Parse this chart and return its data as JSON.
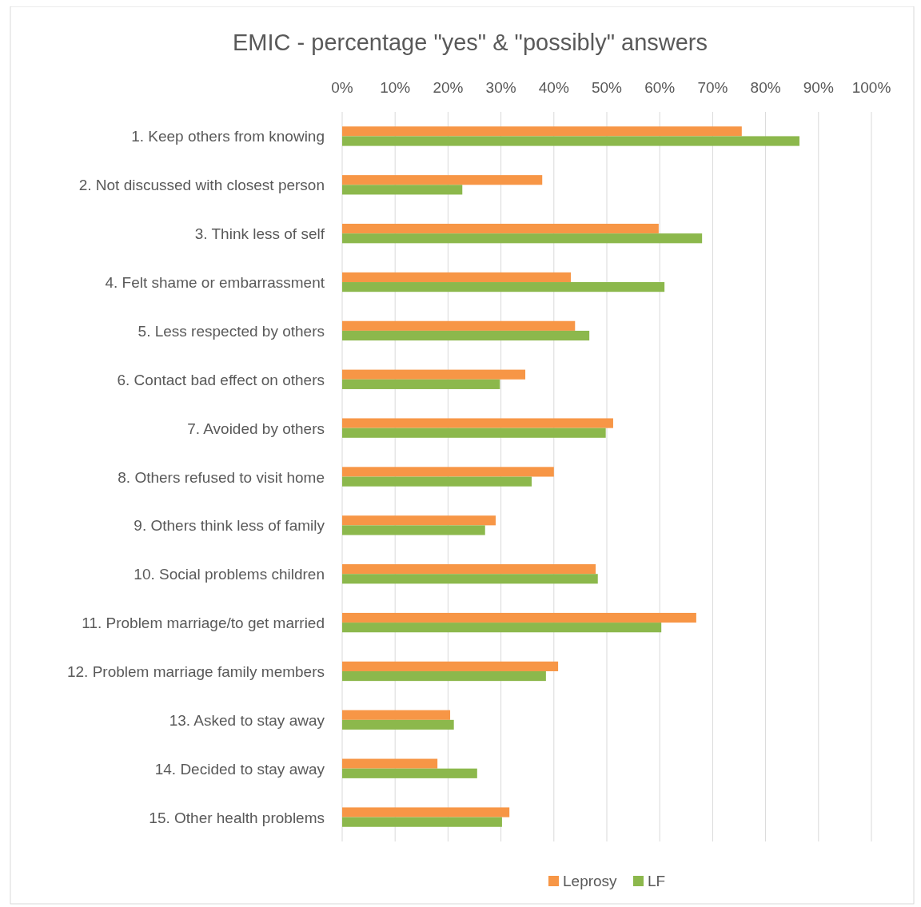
{
  "chart_data": {
    "type": "bar",
    "orientation": "horizontal",
    "title": "EMIC - percentage \"yes\" & \"possibly\" answers",
    "categories": [
      "1. Keep others from knowing",
      "2. Not discussed with closest person",
      "3. Think less of self",
      "4. Felt shame or embarrassment",
      "5. Less respected by others",
      "6. Contact bad effect on others",
      "7. Avoided by others",
      "8. Others refused to visit home",
      "9. Others think less of family",
      "10. Social problems children",
      "11. Problem marriage/to get married",
      "12. Problem marriage family members",
      "13. Asked to stay away",
      "14. Decided to stay away",
      "15. Other health problems"
    ],
    "series": [
      {
        "name": "Leprosy",
        "color": "#f79646",
        "values": [
          75.5,
          37.8,
          59.8,
          43.2,
          44,
          34.6,
          51.2,
          40,
          29,
          47.9,
          66.9,
          40.8,
          20.4,
          18,
          31.6
        ]
      },
      {
        "name": "LF",
        "color": "#8cb84c",
        "values": [
          86.4,
          22.7,
          68,
          60.9,
          46.7,
          29.8,
          49.8,
          35.8,
          27,
          48.3,
          60.3,
          38.5,
          21.1,
          25.5,
          30.2
        ]
      }
    ],
    "xlim": [
      0,
      100
    ],
    "xticks": [
      {
        "value": 0,
        "label": "0%"
      },
      {
        "value": 10,
        "label": "10%"
      },
      {
        "value": 20,
        "label": "20%"
      },
      {
        "value": 30,
        "label": "30%"
      },
      {
        "value": 40,
        "label": "40%"
      },
      {
        "value": 50,
        "label": "50%"
      },
      {
        "value": 60,
        "label": "60%"
      },
      {
        "value": 70,
        "label": "70%"
      },
      {
        "value": 80,
        "label": "80%"
      },
      {
        "value": 90,
        "label": "90%"
      },
      {
        "value": 100,
        "label": "100%"
      }
    ],
    "grid": "x",
    "legend": "bottom"
  }
}
